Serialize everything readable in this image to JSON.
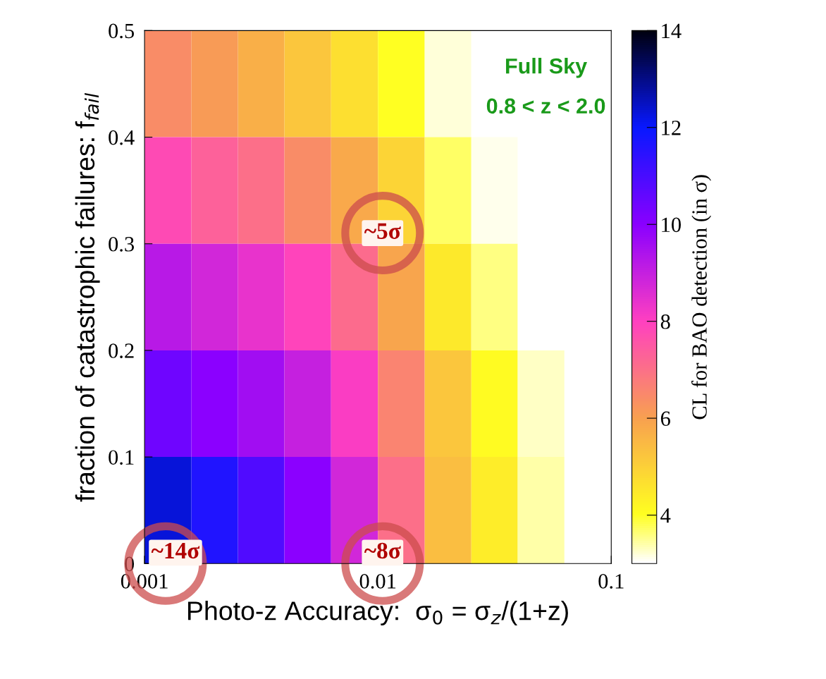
{
  "chart_data": {
    "type": "heatmap",
    "xlabel": "Photo-z Accuracy:  σ$_{0}$ = σ$_{z}$/(1+z)",
    "ylabel": "fraction of catastrophic failures: f$_{fail}$",
    "clabel": "CL for BAO detection (in σ)",
    "x": [
      0.00126,
      0.002,
      0.00316,
      0.005,
      0.00794,
      0.0126,
      0.02,
      0.0316,
      0.05,
      0.0794
    ],
    "y": [
      0.45,
      0.35,
      0.25,
      0.15,
      0.05
    ],
    "cells": [
      [
        6.4,
        6.1,
        5.7,
        5.2,
        4.7,
        4,
        3.2,
        3,
        3,
        3
      ],
      [
        7.8,
        7.3,
        7,
        6.4,
        5.8,
        4.9,
        3.7,
        3.1,
        3,
        3
      ],
      [
        9.2,
        8.8,
        8.4,
        7.9,
        7.1,
        5.9,
        4.5,
        3.6,
        3,
        3
      ],
      [
        10.4,
        10,
        9.6,
        9,
        8.1,
        6.6,
        5.2,
        4.1,
        3.3,
        3
      ],
      [
        12.3,
        11.6,
        10.9,
        10,
        8.8,
        7,
        5.4,
        4.4,
        3.4,
        3
      ]
    ],
    "log": "x",
    "xlim": [
      0.001,
      0.1
    ],
    "xticks": [
      0.001,
      0.01,
      0.1
    ],
    "ylim": [
      0,
      0.5
    ],
    "yticks": [
      0,
      0.1,
      0.2,
      0.3,
      0.4,
      0.5
    ],
    "clim": [
      3,
      14
    ],
    "cticks": [
      4,
      6,
      8,
      10,
      12,
      14
    ],
    "grid": false,
    "annotations": [
      "~5σ",
      "~8σ",
      "~14σ",
      "Full Sky",
      "0.8 < z < 2.0"
    ]
  }
}
